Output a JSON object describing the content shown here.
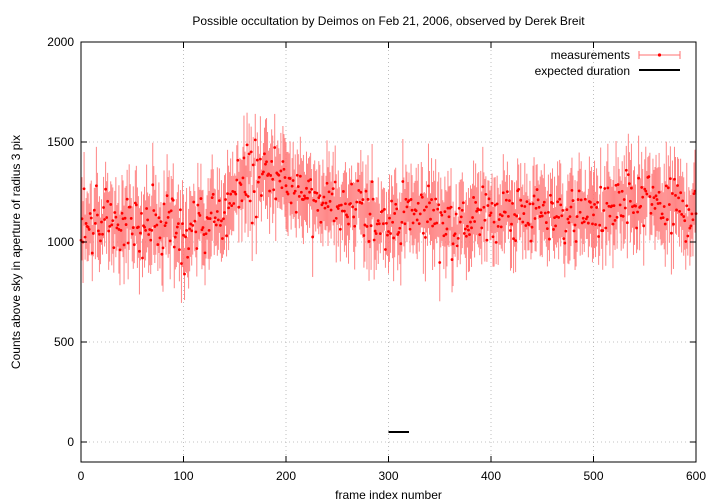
{
  "chart_data": {
    "type": "scatter",
    "title": "Possible occultation by Deimos on Feb 21, 2006, observed by Derek Breit",
    "xlabel": "frame index number",
    "ylabel": "Counts above sky in aperture of radius 3 pix",
    "xlim": [
      0,
      600
    ],
    "ylim": [
      -100,
      2000
    ],
    "xticks": [
      "0",
      "100",
      "200",
      "300",
      "400",
      "500",
      "600"
    ],
    "yticks": [
      "0",
      "500",
      "1000",
      "1500",
      "2000"
    ],
    "grid": true,
    "legend_position": "top-right",
    "colors": {
      "measurements": "#ff0000",
      "errorbar": "#ff7070",
      "duration": "#000000",
      "grid": "#b0b0b0"
    },
    "series": [
      {
        "name": "measurements",
        "style": "points with y error bars",
        "sampling": "every frame index from 0 to 600",
        "trend_x": [
          0,
          50,
          100,
          130,
          160,
          180,
          220,
          260,
          300,
          340,
          370,
          400,
          450,
          500,
          550,
          600
        ],
        "trend_y": [
          1090,
          1110,
          1040,
          1100,
          1320,
          1340,
          1260,
          1150,
          1120,
          1160,
          1080,
          1150,
          1140,
          1140,
          1200,
          1150
        ],
        "typical_error": 150,
        "typical_scatter": 110
      },
      {
        "name": "expected duration",
        "style": "line",
        "x": [
          300,
          320
        ],
        "y": [
          50,
          50
        ]
      }
    ]
  }
}
